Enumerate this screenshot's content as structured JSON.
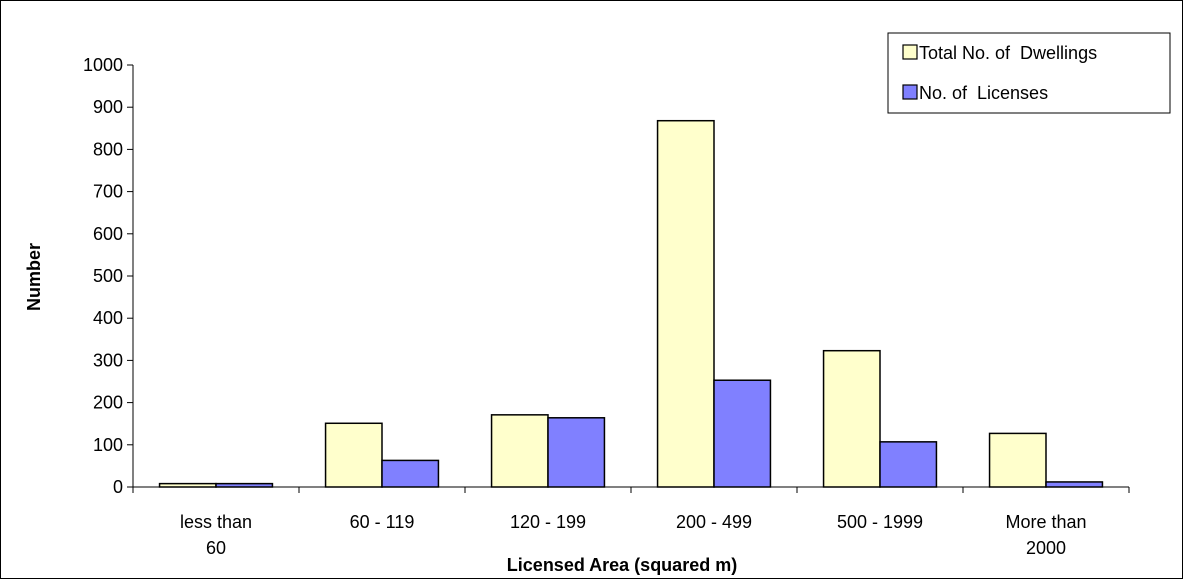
{
  "chart_data": {
    "type": "bar",
    "categories": [
      [
        "less than",
        "60"
      ],
      [
        "60   -   119"
      ],
      [
        "120 - 199"
      ],
      [
        "200 - 499"
      ],
      [
        "500 - 1999"
      ],
      [
        "More than",
        "2000"
      ]
    ],
    "series": [
      {
        "name": "Total No. of  Dwellings",
        "values": [
          8,
          151,
          171,
          868,
          323,
          127
        ],
        "color": "#ffffcc"
      },
      {
        "name": "No. of  Licenses",
        "values": [
          8,
          63,
          164,
          253,
          107,
          12
        ],
        "color": "#8080ff"
      }
    ],
    "xlabel": "Licensed Area (squared m)",
    "ylabel": "Number",
    "ylim": [
      0,
      1000
    ],
    "yticks": [
      0,
      100,
      200,
      300,
      400,
      500,
      600,
      700,
      800,
      900,
      1000
    ],
    "grid": false,
    "legend_position": "top-right"
  }
}
